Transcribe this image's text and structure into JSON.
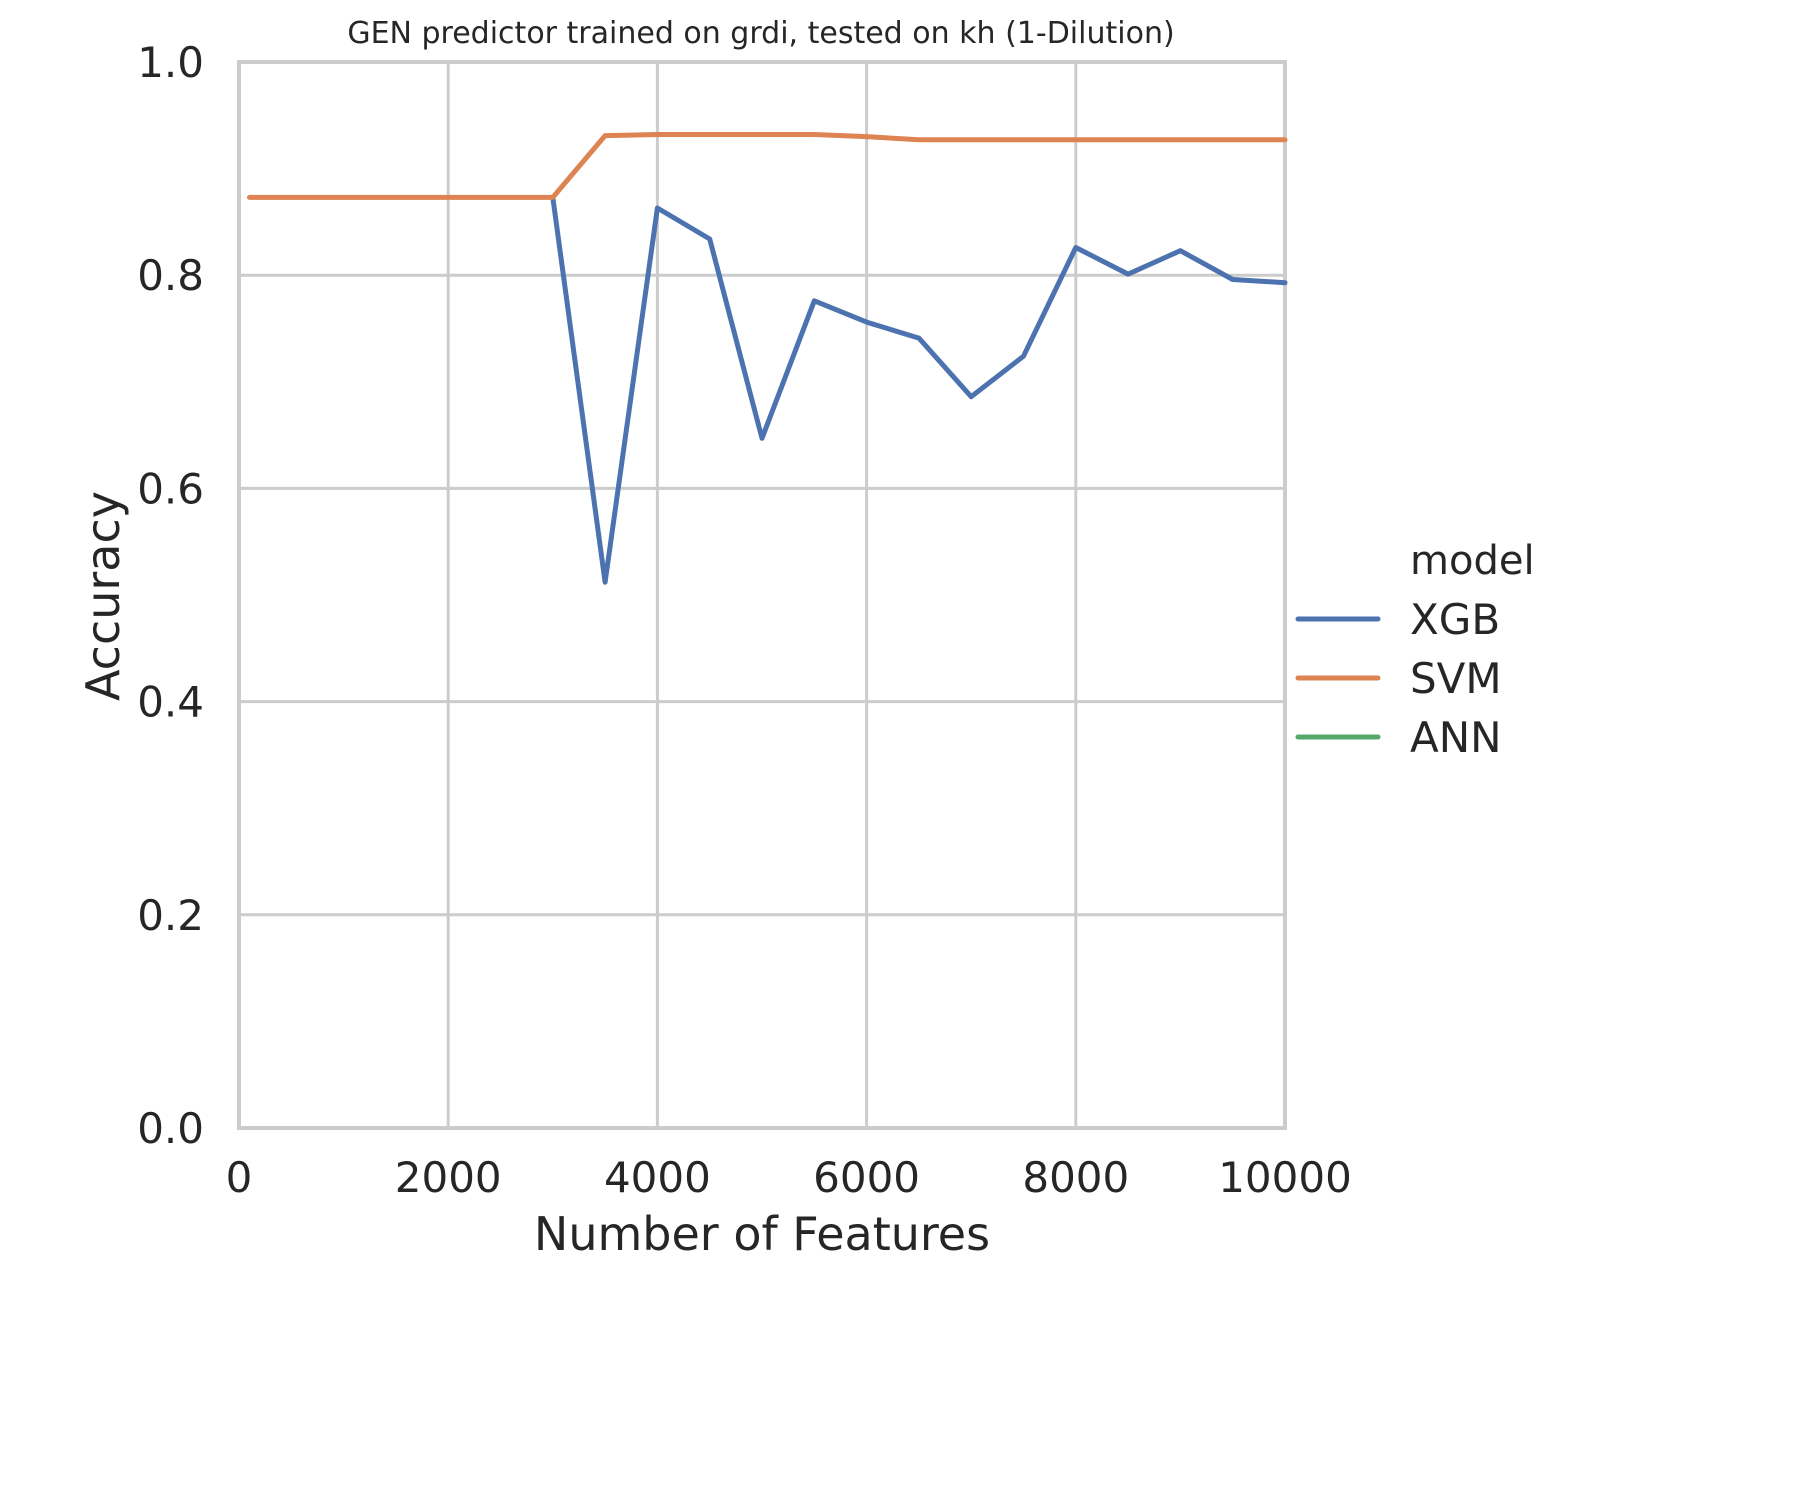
{
  "chart_data": {
    "type": "line",
    "title": "GEN predictor trained on grdi, tested on kh (1-Dilution)",
    "xlabel": "Number of Features",
    "ylabel": "Accuracy",
    "xlim": [
      0,
      10000
    ],
    "ylim": [
      0.0,
      1.0
    ],
    "x_ticks": [
      "0",
      "2000",
      "4000",
      "6000",
      "8000",
      "10000"
    ],
    "y_ticks": [
      "0.0",
      "0.2",
      "0.4",
      "0.6",
      "0.8",
      "1.0"
    ],
    "grid": true,
    "legend": {
      "title": "model",
      "position": "right",
      "entries": [
        {
          "label": "XGB",
          "color": "#4c72b0"
        },
        {
          "label": "SVM",
          "color": "#dd8452"
        },
        {
          "label": "ANN",
          "color": "#55a868"
        }
      ]
    },
    "series": [
      {
        "name": "XGB",
        "color": "#4c72b0",
        "x": [
          3000,
          3500,
          4000,
          4500,
          5000,
          5500,
          6000,
          6500,
          7000,
          7500,
          8000,
          8500,
          9000,
          9500,
          10000
        ],
        "y": [
          0.873,
          0.512,
          0.863,
          0.834,
          0.647,
          0.776,
          0.756,
          0.741,
          0.686,
          0.724,
          0.826,
          0.801,
          0.823,
          0.796,
          0.793
        ]
      },
      {
        "name": "SVM",
        "color": "#dd8452",
        "x": [
          100,
          500,
          1000,
          1500,
          2000,
          2500,
          3000,
          3500,
          4000,
          4500,
          5000,
          5500,
          6000,
          6500,
          7000,
          7500,
          8000,
          8500,
          9000,
          9500,
          10000
        ],
        "y": [
          0.873,
          0.873,
          0.873,
          0.873,
          0.873,
          0.873,
          0.873,
          0.931,
          0.932,
          0.932,
          0.932,
          0.932,
          0.93,
          0.927,
          0.927,
          0.927,
          0.927,
          0.927,
          0.927,
          0.927,
          0.927
        ]
      },
      {
        "name": "ANN",
        "color": "#55a868",
        "x": [],
        "y": []
      }
    ]
  }
}
